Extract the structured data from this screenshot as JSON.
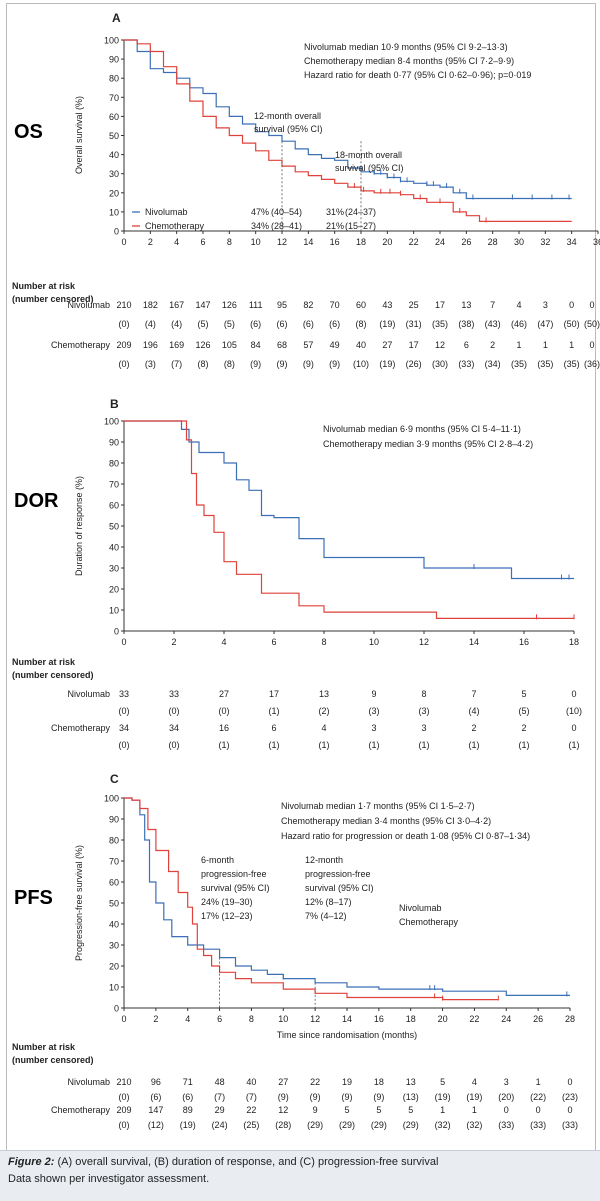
{
  "colors": {
    "nivolumab": "#3b6fb6",
    "chemotherapy": "#e0413a",
    "axis": "#333333",
    "text": "#222222"
  },
  "panels": [
    {
      "letter": "A",
      "side_label": "OS",
      "ylabel": "Overall survival (%)",
      "annotations": [
        "Nivolumab median 10·9 months (95% CI 9·2–13·3)",
        "Chemotherapy median 8·4 months (95% CI 7·2–9·9)",
        "Hazard ratio for death 0·77 (95% CI 0·62–0·96); p=0·019"
      ],
      "callout_12": [
        "12-month overall",
        "survival (95% CI)"
      ],
      "callout_18": [
        "18-month overall",
        "survival (95% CI)"
      ],
      "legend": [
        "Nivolumab",
        "Chemotherapy"
      ],
      "table_values": [
        [
          "47%",
          "(40–54)",
          "31%",
          "(24–37)"
        ],
        [
          "34%",
          "(28–41)",
          "21%",
          "(15–27)"
        ]
      ],
      "risk_header": [
        "Number at risk",
        "(number censored)"
      ],
      "risk_rows": [
        {
          "label": "Nivolumab",
          "counts": [
            "210",
            "182",
            "167",
            "147",
            "126",
            "111",
            "95",
            "82",
            "70",
            "60",
            "43",
            "25",
            "17",
            "13",
            "7",
            "4",
            "3",
            "0",
            "0"
          ],
          "censored": [
            "(0)",
            "(4)",
            "(4)",
            "(5)",
            "(5)",
            "(6)",
            "(6)",
            "(6)",
            "(6)",
            "(8)",
            "(19)",
            "(31)",
            "(35)",
            "(38)",
            "(43)",
            "(46)",
            "(47)",
            "(50)",
            "(50)"
          ]
        },
        {
          "label": "Chemotherapy",
          "counts": [
            "209",
            "196",
            "169",
            "126",
            "105",
            "84",
            "68",
            "57",
            "49",
            "40",
            "27",
            "17",
            "12",
            "6",
            "2",
            "1",
            "1",
            "1",
            "0"
          ],
          "censored": [
            "(0)",
            "(3)",
            "(7)",
            "(8)",
            "(8)",
            "(9)",
            "(9)",
            "(9)",
            "(9)",
            "(10)",
            "(19)",
            "(26)",
            "(30)",
            "(33)",
            "(34)",
            "(35)",
            "(35)",
            "(35)",
            "(36)"
          ]
        }
      ]
    },
    {
      "letter": "B",
      "side_label": "DOR",
      "ylabel": "Duration of response (%)",
      "annotations": [
        "Nivolumab median 6·9 months (95% CI 5·4–11·1)",
        "Chemotherapy median 3·9 months (95% CI 2·8–4·2)"
      ],
      "risk_header": [
        "Number at risk",
        "(number censored)"
      ],
      "risk_rows": [
        {
          "label": "Nivolumab",
          "counts": [
            "33",
            "33",
            "27",
            "17",
            "13",
            "9",
            "8",
            "7",
            "5",
            "0"
          ],
          "censored": [
            "(0)",
            "(0)",
            "(0)",
            "(1)",
            "(2)",
            "(3)",
            "(3)",
            "(4)",
            "(5)",
            "(10)"
          ]
        },
        {
          "label": "Chemotherapy",
          "counts": [
            "34",
            "34",
            "16",
            "6",
            "4",
            "3",
            "3",
            "2",
            "2",
            "0"
          ],
          "censored": [
            "(0)",
            "(0)",
            "(1)",
            "(1)",
            "(1)",
            "(1)",
            "(1)",
            "(1)",
            "(1)",
            "(1)"
          ]
        }
      ]
    },
    {
      "letter": "C",
      "side_label": "PFS",
      "ylabel": "Progression-free survival (%)",
      "xlabel": "Time since randomisation (months)",
      "annotations": [
        "Nivolumab median 1·7 months (95% CI 1·5–2·7)",
        "Chemotherapy median 3·4 months (95% CI 3·0–4·2)",
        "Hazard ratio for progression or death 1·08 (95% CI 0·87–1·34)"
      ],
      "callout_6": [
        "6-month",
        "progression-free",
        "survival (95% CI)",
        "24% (19–30)",
        "17% (12–23)"
      ],
      "callout_12": [
        "12-month",
        "progression-free",
        "survival (95% CI)",
        "12% (8–17)",
        "7% (4–12)"
      ],
      "legend_text": [
        "Nivolumab",
        "Chemotherapy"
      ],
      "risk_header": [
        "Number at risk",
        "(number censored)"
      ],
      "risk_rows": [
        {
          "label": "Nivolumab",
          "counts": [
            "210",
            "96",
            "71",
            "48",
            "40",
            "27",
            "22",
            "19",
            "18",
            "13",
            "5",
            "4",
            "3",
            "1",
            "0"
          ],
          "censored": [
            "(0)",
            "(6)",
            "(6)",
            "(7)",
            "(7)",
            "(9)",
            "(9)",
            "(9)",
            "(9)",
            "(13)",
            "(19)",
            "(19)",
            "(20)",
            "(22)",
            "(23)"
          ]
        },
        {
          "label": "Chemotherapy",
          "counts": [
            "209",
            "147",
            "89",
            "29",
            "22",
            "12",
            "9",
            "5",
            "5",
            "5",
            "1",
            "1",
            "0",
            "0",
            "0"
          ],
          "censored": [
            "(0)",
            "(12)",
            "(19)",
            "(24)",
            "(25)",
            "(28)",
            "(29)",
            "(29)",
            "(29)",
            "(29)",
            "(32)",
            "(32)",
            "(33)",
            "(33)",
            "(33)"
          ]
        }
      ]
    }
  ],
  "chart_data": [
    {
      "type": "line",
      "title": "",
      "xlabel": "",
      "ylabel": "Overall survival (%)",
      "xlim": [
        0,
        36
      ],
      "ylim": [
        0,
        100
      ],
      "xticks": [
        0,
        2,
        4,
        6,
        8,
        10,
        12,
        14,
        16,
        18,
        20,
        22,
        24,
        26,
        28,
        30,
        32,
        34,
        36
      ],
      "yticks": [
        0,
        10,
        20,
        30,
        40,
        50,
        60,
        70,
        80,
        90,
        100
      ],
      "grid": false,
      "legend_position": "lower-left",
      "series": [
        {
          "name": "Nivolumab",
          "color": "#3b6fb6",
          "x": [
            0,
            1,
            2,
            3,
            4,
            5,
            6,
            7,
            8,
            9,
            10,
            11,
            12,
            13,
            14,
            15,
            16,
            17,
            18,
            19,
            20,
            21,
            22,
            23,
            24,
            25,
            26,
            27,
            28,
            29,
            30,
            31,
            32,
            33,
            34
          ],
          "y": [
            100,
            94,
            85,
            83,
            80,
            75,
            72,
            65,
            60,
            56,
            52,
            50,
            47,
            43,
            40,
            38,
            37,
            33,
            31,
            30,
            28,
            26,
            25,
            24,
            23,
            20,
            17,
            17,
            17,
            17,
            17,
            17,
            17,
            17,
            17
          ],
          "censor_x": [
            19,
            19.5,
            20,
            20.5,
            21,
            21.5,
            23,
            23.5,
            24.5,
            25.5,
            26.5,
            29.5,
            31,
            32.5,
            33.8
          ]
        },
        {
          "name": "Chemotherapy",
          "color": "#e0413a",
          "x": [
            0,
            1,
            2,
            3,
            4,
            5,
            6,
            7,
            8,
            9,
            10,
            11,
            12,
            13,
            14,
            15,
            16,
            17,
            18,
            19,
            20,
            21,
            22,
            23,
            24,
            25,
            26,
            27,
            28,
            29,
            30,
            31,
            32,
            33,
            34
          ],
          "y": [
            100,
            98,
            94,
            86,
            77,
            68,
            60,
            54,
            50,
            46,
            42,
            37,
            34,
            31,
            29,
            27,
            25,
            23,
            21,
            20,
            20,
            19,
            17,
            15,
            15,
            10,
            8,
            5,
            5,
            5,
            5,
            5,
            5,
            5,
            5
          ],
          "censor_x": [
            17.5,
            18.2,
            19.5,
            20.2,
            21,
            22.5,
            24,
            25.5,
            27.5
          ]
        }
      ]
    },
    {
      "type": "line",
      "title": "",
      "xlabel": "",
      "ylabel": "Duration of response (%)",
      "xlim": [
        0,
        18
      ],
      "ylim": [
        0,
        100
      ],
      "xticks": [
        0,
        2,
        4,
        6,
        8,
        10,
        12,
        14,
        16,
        18
      ],
      "yticks": [
        0,
        10,
        20,
        30,
        40,
        50,
        60,
        70,
        80,
        90,
        100
      ],
      "grid": false,
      "series": [
        {
          "name": "Nivolumab",
          "color": "#3b6fb6",
          "x": [
            0,
            2,
            2.3,
            2.6,
            3,
            3.5,
            4,
            4.5,
            5,
            5.5,
            6,
            7,
            8,
            10,
            12,
            15.5,
            18
          ],
          "y": [
            100,
            100,
            96,
            90,
            85,
            85,
            80,
            72,
            67,
            55,
            54,
            44,
            35,
            35,
            30,
            25,
            25
          ],
          "censor_x": [
            14,
            17.5,
            17.8
          ]
        },
        {
          "name": "Chemotherapy",
          "color": "#e0413a",
          "x": [
            0,
            2,
            2.5,
            2.7,
            2.9,
            3.2,
            3.6,
            4,
            4.5,
            5.5,
            7,
            8,
            12.5,
            18
          ],
          "y": [
            100,
            100,
            91,
            75,
            60,
            55,
            47,
            33,
            27,
            18,
            12,
            9,
            6,
            6
          ],
          "censor_x": [
            16.5,
            18
          ]
        }
      ]
    },
    {
      "type": "line",
      "title": "",
      "xlabel": "Time since randomisation (months)",
      "ylabel": "Progression-free survival (%)",
      "xlim": [
        0,
        28
      ],
      "ylim": [
        0,
        100
      ],
      "xticks": [
        0,
        2,
        4,
        6,
        8,
        10,
        12,
        14,
        16,
        18,
        20,
        22,
        24,
        26,
        28
      ],
      "yticks": [
        0,
        10,
        20,
        30,
        40,
        50,
        60,
        70,
        80,
        90,
        100
      ],
      "grid": false,
      "series": [
        {
          "name": "Nivolumab",
          "color": "#3b6fb6",
          "x": [
            0,
            0.5,
            1,
            1.3,
            1.6,
            2,
            2.5,
            3,
            4,
            5,
            6,
            7,
            8,
            9,
            10,
            12,
            14,
            16,
            18,
            20,
            24,
            26,
            28
          ],
          "y": [
            100,
            99,
            92,
            80,
            60,
            50,
            42,
            34,
            30,
            28,
            24,
            20,
            18,
            16,
            14,
            12,
            10,
            9,
            9,
            8,
            6,
            6,
            6
          ],
          "censor_x": [
            10,
            19.2,
            19.5,
            27.8
          ]
        },
        {
          "name": "Chemotherapy",
          "color": "#e0413a",
          "x": [
            0,
            0.5,
            1,
            1.5,
            2,
            2.8,
            3.4,
            4,
            4.3,
            4.6,
            5,
            5.5,
            6,
            7,
            8,
            10,
            12,
            14,
            16,
            18,
            20,
            23.5
          ],
          "y": [
            100,
            99,
            95,
            85,
            75,
            65,
            55,
            48,
            40,
            28,
            25,
            20,
            17,
            14,
            12,
            9,
            7,
            5,
            5,
            5,
            4,
            4
          ],
          "censor_x": [
            19.5,
            20,
            23.5
          ]
        }
      ]
    }
  ],
  "caption": {
    "figure_label": "Figure 2:",
    "text": "(A) overall survival, (B) duration of response, and (C) progression-free survival",
    "note": "Data shown per investigator assessment."
  }
}
